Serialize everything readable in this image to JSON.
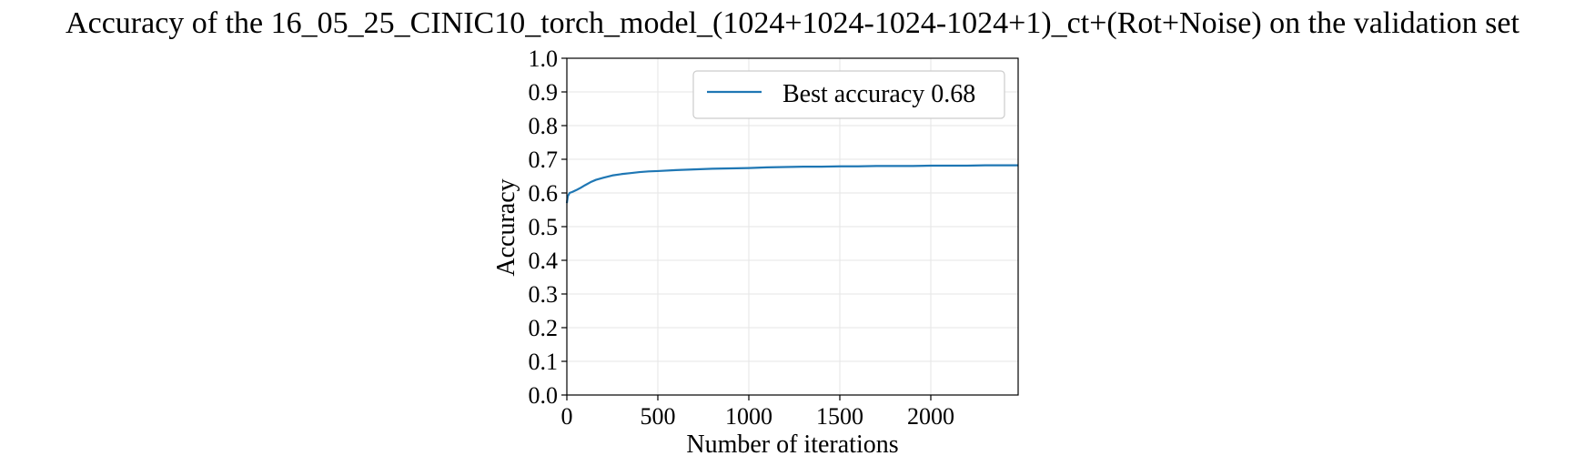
{
  "chart_data": {
    "type": "line",
    "title": "Accuracy of the 16_05_25_CINIC10_torch_model_(1024+1024-1024-1024+1)_ct+(Rot+Noise) on the validation set",
    "xlabel": "Number of iterations",
    "ylabel": "Accuracy",
    "xlim": [
      0,
      2480
    ],
    "ylim": [
      0.0,
      1.0
    ],
    "xticks": [
      0,
      500,
      1000,
      1500,
      2000
    ],
    "xtick_labels": [
      "0",
      "500",
      "1000",
      "1500",
      "2000"
    ],
    "yticks": [
      0.0,
      0.1,
      0.2,
      0.3,
      0.4,
      0.5,
      0.6,
      0.7,
      0.8,
      0.9,
      1.0
    ],
    "ytick_labels": [
      "0.0",
      "0.1",
      "0.2",
      "0.3",
      "0.4",
      "0.5",
      "0.6",
      "0.7",
      "0.8",
      "0.9",
      "1.0"
    ],
    "grid": true,
    "legend_position": "top-right",
    "series": [
      {
        "name": "Best accuracy 0.68",
        "color": "#1f77b4",
        "x": [
          0,
          5,
          15,
          30,
          50,
          75,
          100,
          130,
          160,
          200,
          250,
          300,
          350,
          400,
          450,
          500,
          600,
          700,
          800,
          900,
          1000,
          1100,
          1200,
          1300,
          1400,
          1500,
          1600,
          1700,
          1800,
          1900,
          2000,
          2100,
          2200,
          2300,
          2400,
          2480
        ],
        "y": [
          0.57,
          0.59,
          0.6,
          0.603,
          0.608,
          0.615,
          0.623,
          0.632,
          0.639,
          0.645,
          0.652,
          0.656,
          0.659,
          0.662,
          0.664,
          0.665,
          0.668,
          0.67,
          0.672,
          0.673,
          0.674,
          0.676,
          0.677,
          0.678,
          0.678,
          0.679,
          0.679,
          0.68,
          0.68,
          0.68,
          0.681,
          0.681,
          0.681,
          0.682,
          0.682,
          0.682
        ]
      }
    ]
  }
}
